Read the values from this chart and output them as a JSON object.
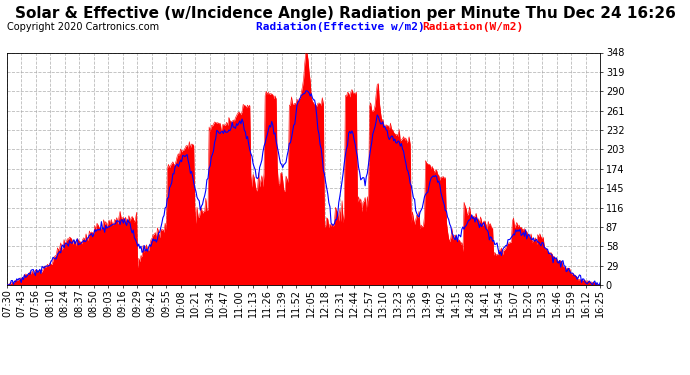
{
  "title": "Solar & Effective (w/Incidence Angle) Radiation per Minute Thu Dec 24 16:26",
  "copyright": "Copyright 2020 Cartronics.com",
  "legend_blue": "Radiation(Effective w/m2)",
  "legend_red": "Radiation(W/m2)",
  "yticks": [
    0.0,
    29.0,
    58.0,
    87.0,
    116.0,
    145.0,
    174.0,
    203.0,
    232.0,
    261.0,
    290.0,
    319.0,
    348.0
  ],
  "ymin": 0.0,
  "ymax": 348.0,
  "bg_color": "#ffffff",
  "plot_bg_color": "#ffffff",
  "grid_color": "#aaaaaa",
  "red_color": "#ff0000",
  "blue_color": "#0000ff",
  "title_fontsize": 11,
  "copyright_fontsize": 7,
  "legend_fontsize": 8,
  "tick_fontsize": 7,
  "xtick_labels": [
    "07:30",
    "07:43",
    "07:56",
    "08:10",
    "08:24",
    "08:37",
    "08:50",
    "09:03",
    "09:16",
    "09:29",
    "09:42",
    "09:55",
    "10:08",
    "10:21",
    "10:34",
    "10:47",
    "11:00",
    "11:13",
    "11:26",
    "11:39",
    "11:52",
    "12:05",
    "12:18",
    "12:31",
    "12:44",
    "12:57",
    "13:10",
    "13:23",
    "13:36",
    "13:49",
    "14:02",
    "14:15",
    "14:28",
    "14:41",
    "14:54",
    "15:07",
    "15:20",
    "15:33",
    "15:46",
    "15:59",
    "16:12",
    "16:25"
  ]
}
